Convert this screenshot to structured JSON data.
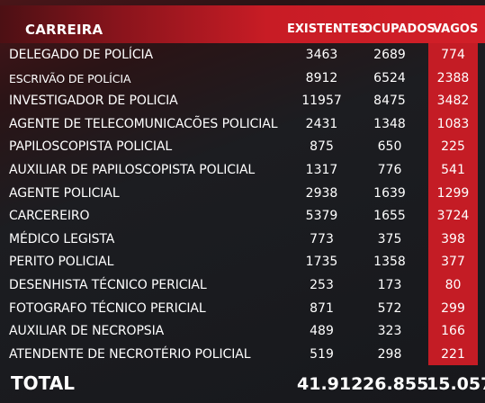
{
  "header": {
    "carreira": "CARREIRA",
    "existentes": "EXISTENTES",
    "ocupados": "OCUPADOS",
    "vagos": "VAGOS"
  },
  "rows": [
    {
      "name": "DELEGADO DE POLÍCIA",
      "existentes": "3463",
      "ocupados": "2689",
      "vagos": "774"
    },
    {
      "name": "ESCRIVÃO DE POLÍCIA",
      "existentes": "8912",
      "ocupados": "6524",
      "vagos": "2388"
    },
    {
      "name": "INVESTIGADOR DE POLICIA",
      "existentes": "11957",
      "ocupados": "8475",
      "vagos": "3482"
    },
    {
      "name": "AGENTE DE TELECOMUNICACÕES POLICIAL",
      "existentes": "2431",
      "ocupados": "1348",
      "vagos": "1083"
    },
    {
      "name": "PAPILOSCOPISTA POLICIAL",
      "existentes": "875",
      "ocupados": "650",
      "vagos": "225"
    },
    {
      "name": "AUXILIAR DE PAPILOSCOPISTA POLICIAL",
      "existentes": "1317",
      "ocupados": "776",
      "vagos": "541"
    },
    {
      "name": "AGENTE POLICIAL",
      "existentes": "2938",
      "ocupados": "1639",
      "vagos": "1299"
    },
    {
      "name": "CARCEREIRO",
      "existentes": "5379",
      "ocupados": "1655",
      "vagos": "3724"
    },
    {
      "name": "MÉDICO LEGISTA",
      "existentes": "773",
      "ocupados": "375",
      "vagos": "398"
    },
    {
      "name": "PERITO POLICIAL",
      "existentes": "1735",
      "ocupados": "1358",
      "vagos": "377"
    },
    {
      "name": "DESENHISTA TÉCNICO PERICIAL",
      "existentes": "253",
      "ocupados": "173",
      "vagos": "80"
    },
    {
      "name": "FOTOGRAFO TÉCNICO PERICIAL",
      "existentes": "871",
      "ocupados": "572",
      "vagos": "299"
    },
    {
      "name": "AUXILIAR DE NECROPSIA",
      "existentes": "489",
      "ocupados": "323",
      "vagos": "166"
    },
    {
      "name": "ATENDENTE DE NECROTÉRIO POLICIAL",
      "existentes": "519",
      "ocupados": "298",
      "vagos": "221"
    }
  ],
  "total": {
    "label": "TOTAL",
    "existentes": "41.912",
    "ocupados": "26.855",
    "vagos": "15.057"
  },
  "colors": {
    "header_red": "#d21f28",
    "vagos_red": "#c41c25",
    "background": "#17181c"
  }
}
